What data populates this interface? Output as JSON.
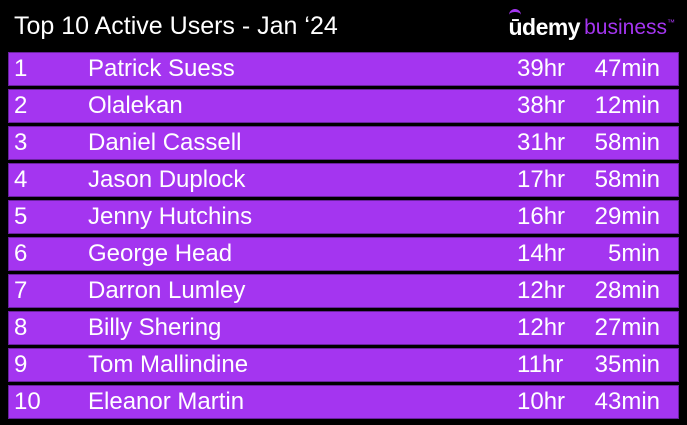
{
  "header": {
    "title": "Top 10 Active Users - Jan ‘24",
    "logo_brand": "ūdemy",
    "logo_sub": "business",
    "logo_tm": "™"
  },
  "colors": {
    "background": "#000000",
    "row_fill": "#A435F0",
    "text": "#FFFFFF",
    "brand_accent": "#A435F0"
  },
  "users": [
    {
      "rank": "1",
      "name": "Patrick Suess",
      "hours": "39hr",
      "minutes": "47min"
    },
    {
      "rank": "2",
      "name": "Olalekan",
      "hours": "38hr",
      "minutes": "12min"
    },
    {
      "rank": "3",
      "name": "Daniel Cassell",
      "hours": "31hr",
      "minutes": "58min"
    },
    {
      "rank": "4",
      "name": "Jason Duplock",
      "hours": "17hr",
      "minutes": "58min"
    },
    {
      "rank": "5",
      "name": "Jenny Hutchins",
      "hours": "16hr",
      "minutes": "29min"
    },
    {
      "rank": "6",
      "name": "George Head",
      "hours": "14hr",
      "minutes": "5min"
    },
    {
      "rank": "7",
      "name": "Darron Lumley",
      "hours": "12hr",
      "minutes": "28min"
    },
    {
      "rank": "8",
      "name": "Billy Shering",
      "hours": "12hr",
      "minutes": "27min"
    },
    {
      "rank": "9",
      "name": "Tom Mallindine",
      "hours": "11hr",
      "minutes": "35min"
    },
    {
      "rank": "10",
      "name": "Eleanor Martin",
      "hours": "10hr",
      "minutes": "43min"
    }
  ]
}
